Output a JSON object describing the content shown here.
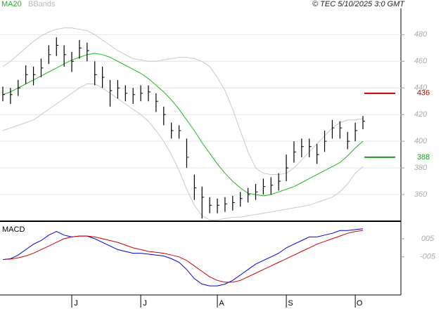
{
  "chart_data": {
    "type": "ohlc",
    "source": "© TEC 5/10/2025 3:0 GMT",
    "categories": [
      null,
      null,
      null,
      null,
      null,
      null,
      null,
      null,
      null,
      "J",
      null,
      null,
      null,
      null,
      null,
      null,
      null,
      null,
      "J",
      null,
      null,
      null,
      null,
      null,
      null,
      null,
      null,
      null,
      "A",
      null,
      null,
      null,
      null,
      null,
      null,
      null,
      null,
      "S",
      null,
      null,
      null,
      null,
      null,
      null,
      null,
      null,
      "O",
      null
    ],
    "bar_color": "#000000",
    "high": [
      441,
      440,
      446,
      457,
      456,
      462,
      472,
      478,
      472,
      467,
      476,
      474,
      460,
      456,
      446,
      446,
      442,
      440,
      442,
      442,
      436,
      426,
      414,
      412,
      402,
      375,
      366,
      358,
      357,
      358,
      359,
      362,
      365,
      368,
      372,
      373,
      376,
      390,
      400,
      402,
      402,
      398,
      408,
      416,
      415,
      407,
      414,
      419
    ],
    "low": [
      430,
      428,
      434,
      443,
      442,
      448,
      458,
      464,
      456,
      452,
      462,
      460,
      442,
      440,
      426,
      432,
      430,
      428,
      430,
      430,
      422,
      412,
      402,
      402,
      380,
      356,
      342,
      346,
      346,
      347,
      348,
      351,
      354,
      356,
      360,
      360,
      363,
      370,
      384,
      388,
      388,
      383,
      392,
      402,
      402,
      394,
      400,
      409
    ],
    "close": [
      435,
      435,
      440,
      450,
      450,
      455,
      465,
      472,
      465,
      460,
      470,
      468,
      450,
      448,
      438,
      440,
      436,
      435,
      436,
      437,
      430,
      420,
      408,
      408,
      388,
      365,
      358,
      352,
      352,
      353,
      354,
      357,
      360,
      362,
      366,
      367,
      370,
      380,
      392,
      396,
      396,
      390,
      400,
      410,
      410,
      400,
      408,
      415
    ],
    "series": [
      {
        "name": "MA20",
        "color": "#22b422",
        "values": [
          435,
          437,
          440,
          443,
          446,
          449,
          452,
          455,
          458,
          461,
          463,
          465,
          466,
          465,
          463,
          460,
          457,
          454,
          451,
          447,
          442,
          437,
          431,
          424,
          416,
          408,
          399,
          391,
          383,
          376,
          370,
          365,
          361,
          360,
          359,
          360,
          362,
          364,
          366,
          369,
          372,
          375,
          378,
          381,
          384,
          389,
          395,
          400
        ]
      },
      {
        "name": "BBands",
        "color": "#c8c8c8",
        "upper": [
          456,
          460,
          465,
          470,
          475,
          479,
          482,
          484,
          485,
          485,
          484,
          483,
          480,
          476,
          472,
          468,
          465,
          462,
          461,
          460,
          460,
          461,
          462,
          463,
          463,
          462,
          460,
          456,
          448,
          438,
          424,
          408,
          392,
          380,
          376,
          375,
          375,
          376,
          380,
          386,
          392,
          398,
          404,
          410,
          414,
          416,
          416,
          417
        ],
        "lower": [
          408,
          410,
          412,
          414,
          416,
          420,
          424,
          428,
          432,
          436,
          440,
          443,
          443,
          440,
          436,
          432,
          428,
          424,
          420,
          415,
          408,
          400,
          390,
          378,
          364,
          352,
          344,
          341,
          341,
          342,
          343,
          343,
          344,
          345,
          346,
          347,
          348,
          349,
          350,
          351,
          352,
          354,
          356,
          358,
          362,
          368,
          376,
          381
        ]
      }
    ],
    "ylim": [
      340,
      506
    ],
    "yticks": [
      360,
      380,
      400,
      420,
      440,
      460,
      480
    ],
    "grid": true,
    "levels": [
      {
        "value": 436,
        "color": "#c00000"
      },
      {
        "value": 388,
        "color": "#1a9b1a"
      }
    ],
    "macd": {
      "title": "MACD",
      "ylim": [
        -0.26,
        0.135
      ],
      "yticks": [
        {
          "value": 0.05,
          "label": "005"
        },
        {
          "value": -0.05,
          "label": "-005"
        }
      ],
      "macd_line": {
        "color": "#0000dd",
        "values": [
          -0.065,
          -0.06,
          -0.04,
          -0.01,
          0.02,
          0.04,
          0.07,
          0.09,
          0.07,
          0.06,
          0.065,
          0.065,
          0.05,
          0.03,
          0.01,
          -0.01,
          -0.02,
          -0.03,
          -0.03,
          -0.035,
          -0.04,
          -0.045,
          -0.06,
          -0.08,
          -0.12,
          -0.17,
          -0.2,
          -0.21,
          -0.21,
          -0.2,
          -0.18,
          -0.15,
          -0.12,
          -0.09,
          -0.07,
          -0.05,
          -0.03,
          0.0,
          0.02,
          0.04,
          0.06,
          0.06,
          0.07,
          0.08,
          0.095,
          0.095,
          0.1,
          0.105
        ]
      },
      "signal_line": {
        "color": "#cc0000",
        "values": [
          -0.065,
          -0.062,
          -0.055,
          -0.045,
          -0.03,
          -0.01,
          0.01,
          0.03,
          0.05,
          0.06,
          0.065,
          0.065,
          0.06,
          0.05,
          0.04,
          0.03,
          0.015,
          0.0,
          -0.01,
          -0.02,
          -0.025,
          -0.03,
          -0.04,
          -0.05,
          -0.07,
          -0.1,
          -0.13,
          -0.16,
          -0.18,
          -0.19,
          -0.19,
          -0.18,
          -0.16,
          -0.14,
          -0.12,
          -0.1,
          -0.08,
          -0.06,
          -0.04,
          -0.02,
          0.0,
          0.02,
          0.035,
          0.05,
          0.065,
          0.08,
          0.09,
          0.095
        ]
      }
    }
  }
}
